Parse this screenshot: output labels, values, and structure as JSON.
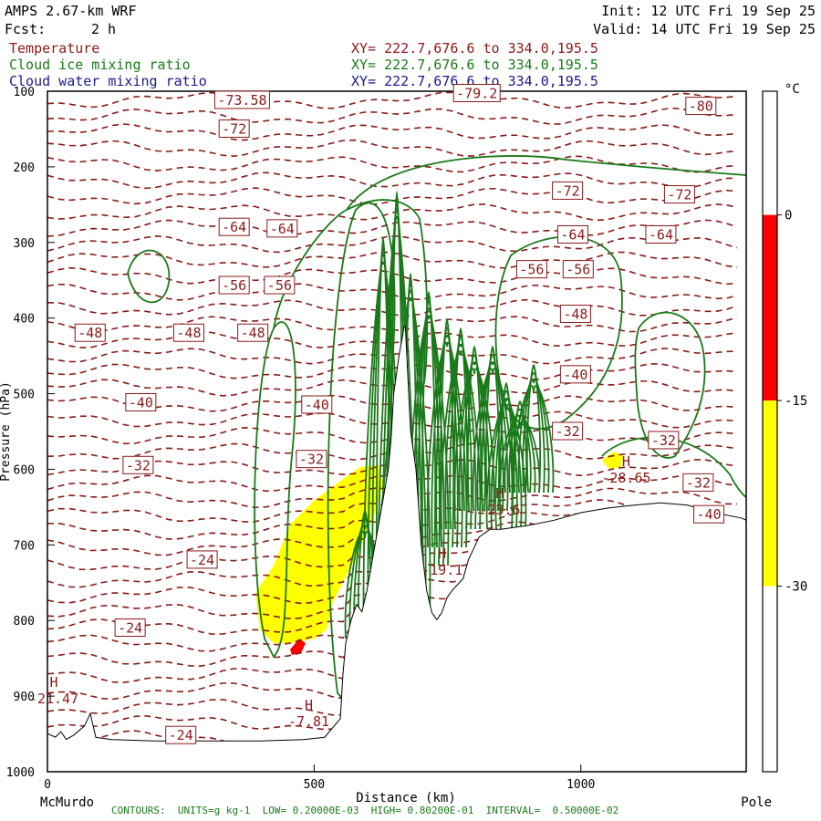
{
  "header": {
    "model": "AMPS 2.67-km WRF",
    "fcst_label": "Fcst:",
    "fcst_value": "2 h",
    "init": "Init: 12 UTC Fri 19 Sep 25",
    "valid": "Valid: 14 UTC Fri 19 Sep 25"
  },
  "legend": [
    {
      "name": "Temperature",
      "xy": "XY= 222.7,676.6 to 334.0,195.5",
      "color": "#8b1a1a"
    },
    {
      "name": "Cloud ice mixing ratio",
      "xy": "XY= 222.7,676.6 to 334.0,195.5",
      "color": "#1a7a1a"
    },
    {
      "name": "Cloud water mixing ratio",
      "xy": "XY= 222.7,676.6 to 334.0,195.5",
      "color": "#1a1a8b"
    }
  ],
  "footer": "CONTOURS:  UNITS=g kg-1  LOW= 0.20000E-03  HIGH= 0.80200E-01  INTERVAL=  0.50000E-02",
  "chart_data": {
    "type": "contour",
    "xlabel": "Distance (km)",
    "ylabel": "Pressure (hPa)",
    "xlim": [
      0,
      1310
    ],
    "ylim": [
      1000,
      100
    ],
    "xticks": [
      0,
      500,
      1000
    ],
    "yticks": [
      100,
      200,
      300,
      400,
      500,
      600,
      700,
      800,
      900,
      1000
    ],
    "x_endpoints": [
      "McMurdo",
      "Pole"
    ],
    "colorbar": {
      "unit": "°C",
      "ticks": [
        0,
        -15,
        -30
      ],
      "bands": [
        {
          "from": 10,
          "to": 0,
          "color": "#ffffff"
        },
        {
          "from": 0,
          "to": -15,
          "color": "#ff0000"
        },
        {
          "from": -15,
          "to": -30,
          "color": "#ffff00"
        },
        {
          "from": -30,
          "to": -45,
          "color": "#ffffff"
        }
      ]
    },
    "temperature_labels": [
      {
        "text": "-73.58",
        "x": 365,
        "p": 112
      },
      {
        "text": "-79.2",
        "x": 805,
        "p": 103
      },
      {
        "text": "-80",
        "x": 1225,
        "p": 120
      },
      {
        "text": "-72",
        "x": 350,
        "p": 150
      },
      {
        "text": "-72",
        "x": 975,
        "p": 232
      },
      {
        "text": "-72",
        "x": 1185,
        "p": 237
      },
      {
        "text": "-64",
        "x": 350,
        "p": 280
      },
      {
        "text": "-64",
        "x": 440,
        "p": 282
      },
      {
        "text": "-64",
        "x": 985,
        "p": 290
      },
      {
        "text": "-64",
        "x": 1150,
        "p": 290
      },
      {
        "text": "-56",
        "x": 350,
        "p": 357
      },
      {
        "text": "-56",
        "x": 435,
        "p": 357
      },
      {
        "text": "-56",
        "x": 908,
        "p": 336
      },
      {
        "text": "-56",
        "x": 995,
        "p": 336
      },
      {
        "text": "-48",
        "x": 80,
        "p": 420
      },
      {
        "text": "-48",
        "x": 265,
        "p": 420
      },
      {
        "text": "-48",
        "x": 385,
        "p": 420
      },
      {
        "text": "-48",
        "x": 990,
        "p": 395
      },
      {
        "text": "-40",
        "x": 175,
        "p": 512
      },
      {
        "text": "-40",
        "x": 505,
        "p": 515
      },
      {
        "text": "-40",
        "x": 990,
        "p": 475
      },
      {
        "text": "-32",
        "x": 170,
        "p": 595
      },
      {
        "text": "-32",
        "x": 495,
        "p": 587
      },
      {
        "text": "-32",
        "x": 975,
        "p": 550
      },
      {
        "text": "-32",
        "x": 1155,
        "p": 562
      },
      {
        "text": "-32",
        "x": 1220,
        "p": 618
      },
      {
        "text": "-40",
        "x": 1240,
        "p": 660
      },
      {
        "text": "-24",
        "x": 290,
        "p": 720
      },
      {
        "text": "-24",
        "x": 155,
        "p": 810
      },
      {
        "text": "-24",
        "x": 250,
        "p": 952
      }
    ],
    "extrema_labels": [
      {
        "type": "H",
        "value": "-19.1",
        "x": 740,
        "p": 730
      },
      {
        "type": "H",
        "value": "-23.6",
        "x": 848,
        "p": 650
      },
      {
        "type": "H",
        "value": "-28.65",
        "x": 1085,
        "p": 608
      },
      {
        "type": "H",
        "value": "-21.47",
        "x": 12,
        "p": 900
      },
      {
        "type": "H",
        "value": "-7.81",
        "x": 490,
        "p": 930
      }
    ],
    "terrain_pressure": [
      [
        0,
        950
      ],
      [
        15,
        955
      ],
      [
        25,
        948
      ],
      [
        35,
        958
      ],
      [
        50,
        952
      ],
      [
        70,
        940
      ],
      [
        80,
        925
      ],
      [
        90,
        955
      ],
      [
        120,
        958
      ],
      [
        200,
        960
      ],
      [
        300,
        960
      ],
      [
        400,
        960
      ],
      [
        480,
        958
      ],
      [
        520,
        955
      ],
      [
        550,
        930
      ],
      [
        555,
        870
      ],
      [
        560,
        830
      ],
      [
        570,
        800
      ],
      [
        580,
        780
      ],
      [
        590,
        790
      ],
      [
        600,
        760
      ],
      [
        610,
        720
      ],
      [
        620,
        680
      ],
      [
        630,
        640
      ],
      [
        640,
        600
      ],
      [
        645,
        560
      ],
      [
        650,
        500
      ],
      [
        660,
        450
      ],
      [
        670,
        410
      ],
      [
        680,
        550
      ],
      [
        690,
        600
      ],
      [
        700,
        700
      ],
      [
        710,
        760
      ],
      [
        720,
        790
      ],
      [
        730,
        800
      ],
      [
        740,
        790
      ],
      [
        750,
        770
      ],
      [
        760,
        760
      ],
      [
        780,
        745
      ],
      [
        790,
        720
      ],
      [
        800,
        705
      ],
      [
        810,
        690
      ],
      [
        830,
        680
      ],
      [
        850,
        680
      ],
      [
        900,
        675
      ],
      [
        950,
        668
      ],
      [
        1000,
        658
      ],
      [
        1050,
        652
      ],
      [
        1100,
        648
      ],
      [
        1150,
        645
      ],
      [
        1200,
        648
      ],
      [
        1250,
        658
      ],
      [
        1300,
        665
      ],
      [
        1310,
        668
      ]
    ]
  }
}
